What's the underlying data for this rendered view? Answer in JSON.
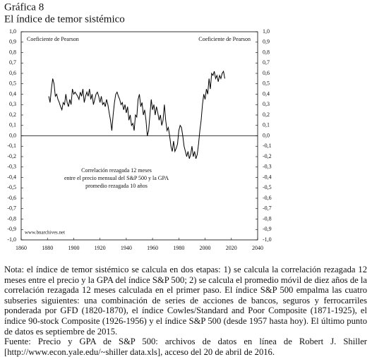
{
  "header": {
    "kicker": "Gráfica 8",
    "title": "El índice de temor sistémico"
  },
  "chart_data": {
    "type": "line",
    "xlim": [
      1860,
      2040
    ],
    "xticks": [
      1860,
      1880,
      1900,
      1920,
      1940,
      1960,
      1980,
      2000,
      2020,
      2040
    ],
    "ylim": [
      -1,
      1
    ],
    "yticks": [
      {
        "value": 1,
        "label": "1,0"
      },
      {
        "value": 0.9,
        "label": "0,9"
      },
      {
        "value": 0.8,
        "label": "0,8"
      },
      {
        "value": 0.7,
        "label": "0,7"
      },
      {
        "value": 0.6,
        "label": "0,6"
      },
      {
        "value": 0.5,
        "label": "0,5"
      },
      {
        "value": 0.4,
        "label": "0,4"
      },
      {
        "value": 0.3,
        "label": "0,3"
      },
      {
        "value": 0.2,
        "label": "0,2"
      },
      {
        "value": 0.1,
        "label": "0,1"
      },
      {
        "value": 0,
        "label": "0,0"
      },
      {
        "value": -0.1,
        "label": "-0,1"
      },
      {
        "value": -0.2,
        "label": "-0,2"
      },
      {
        "value": -0.3,
        "label": "-0,3"
      },
      {
        "value": -0.4,
        "label": "-0,4"
      },
      {
        "value": -0.5,
        "label": "-0,5"
      },
      {
        "value": -0.6,
        "label": "-0,6"
      },
      {
        "value": -0.7,
        "label": "-0,7"
      },
      {
        "value": -0.8,
        "label": "-0,8"
      },
      {
        "value": -0.9,
        "label": "-0,9"
      },
      {
        "value": -1,
        "label": "-1,0"
      }
    ],
    "y2lim": [
      -1,
      1
    ],
    "y2ticks": [
      {
        "value": 1,
        "label": "1,0"
      },
      {
        "value": 0.9,
        "label": "0,9"
      },
      {
        "value": 0.8,
        "label": "0,8"
      },
      {
        "value": 0.7,
        "label": "0,7"
      },
      {
        "value": 0.6,
        "label": "0,6"
      },
      {
        "value": 0.5,
        "label": "0,5"
      },
      {
        "value": 0.4,
        "label": "0,4"
      },
      {
        "value": 0.3,
        "label": "0,3"
      },
      {
        "value": 0.2,
        "label": "0,2"
      },
      {
        "value": 0.1,
        "label": "0,1"
      },
      {
        "value": 0,
        "label": "0,0"
      },
      {
        "value": -0.1,
        "label": "-0,1"
      },
      {
        "value": -0.2,
        "label": "-0,2"
      },
      {
        "value": -0.3,
        "label": "-0,3"
      },
      {
        "value": -0.4,
        "label": "-0,4"
      },
      {
        "value": -0.5,
        "label": "-0,5"
      },
      {
        "value": -0.6,
        "label": "-0,6"
      },
      {
        "value": -0.7,
        "label": "-0,7"
      },
      {
        "value": -0.8,
        "label": "-0,8"
      },
      {
        "value": -0.9,
        "label": "-0,9"
      },
      {
        "value": -1,
        "label": "-1,0"
      }
    ],
    "y_label": "Coeficiente de Pearson",
    "y2_label": "Coeficiente de Pearson",
    "annotation": [
      "Correlación rezagada 12 meses",
      "entre el precio mensual del S&P 500 y la GPA",
      "promedio rezagada 10 años"
    ],
    "source_mark": "www.bnarchives.net",
    "color": "#000000",
    "x": [
      1881,
      1882,
      1883,
      1884,
      1885,
      1886,
      1887,
      1888,
      1889,
      1890,
      1891,
      1892,
      1893,
      1894,
      1895,
      1896,
      1897,
      1898,
      1899,
      1900,
      1901,
      1902,
      1903,
      1904,
      1905,
      1906,
      1907,
      1908,
      1909,
      1910,
      1911,
      1912,
      1913,
      1914,
      1915,
      1916,
      1917,
      1918,
      1919,
      1920,
      1921,
      1922,
      1923,
      1924,
      1925,
      1926,
      1927,
      1928,
      1929,
      1930,
      1931,
      1932,
      1933,
      1934,
      1935,
      1936,
      1937,
      1938,
      1939,
      1940,
      1941,
      1942,
      1943,
      1944,
      1945,
      1946,
      1947,
      1948,
      1949,
      1950,
      1951,
      1952,
      1953,
      1954,
      1955,
      1956,
      1957,
      1958,
      1959,
      1960,
      1961,
      1962,
      1963,
      1964,
      1965,
      1966,
      1967,
      1968,
      1969,
      1970,
      1971,
      1972,
      1973,
      1974,
      1975,
      1976,
      1977,
      1978,
      1979,
      1980,
      1981,
      1982,
      1983,
      1984,
      1985,
      1986,
      1987,
      1988,
      1989,
      1990,
      1991,
      1992,
      1993,
      1994,
      1995,
      1996,
      1997,
      1998,
      1999,
      2000,
      2001,
      2002,
      2003,
      2004,
      2005,
      2006,
      2007,
      2008,
      2009,
      2010,
      2011,
      2012,
      2013,
      2014,
      2015
    ],
    "values": [
      0.38,
      0.32,
      0.45,
      0.55,
      0.5,
      0.38,
      0.4,
      0.35,
      0.32,
      0.28,
      0.25,
      0.32,
      0.3,
      0.4,
      0.32,
      0.28,
      0.35,
      0.3,
      0.45,
      0.4,
      0.42,
      0.4,
      0.38,
      0.35,
      0.42,
      0.38,
      0.45,
      0.32,
      0.38,
      0.42,
      0.38,
      0.45,
      0.35,
      0.4,
      0.3,
      0.35,
      0.4,
      0.42,
      0.38,
      0.32,
      0.38,
      0.3,
      0.32,
      0.28,
      0.35,
      0.3,
      0.22,
      0.15,
      0.05,
      0.2,
      0.32,
      0.4,
      0.42,
      0.38,
      0.35,
      0.3,
      0.32,
      0.25,
      0.3,
      0.22,
      0.28,
      0.15,
      0.2,
      0.1,
      0.12,
      0.05,
      0.2,
      0.18,
      0.35,
      0.4,
      0.28,
      0.32,
      0.2,
      0.25,
      0.15,
      0,
      0.05,
      0.2,
      0.35,
      0.25,
      0.3,
      0.2,
      0.28,
      0.22,
      0.15,
      0.2,
      0.1,
      0.15,
      0.3,
      0.15,
      0.05,
      0.08,
      0,
      -0.1,
      -0.15,
      -0.05,
      -0.15,
      -0.12,
      -0.08,
      0.05,
      0.1,
      0.08,
      0,
      -0.1,
      -0.15,
      -0.2,
      -0.15,
      -0.22,
      -0.18,
      -0.1,
      -0.2,
      -0.15,
      -0.22,
      -0.18,
      -0.08,
      0.05,
      0.15,
      0.3,
      0.4,
      0.35,
      0.45,
      0.4,
      0.55,
      0.45,
      0.6,
      0.58,
      0.62,
      0.55,
      0.58,
      0.52,
      0.58,
      0.55,
      0.6,
      0.62,
      0.55
    ]
  },
  "notes": [
    "Nota: el índice de temor sistémico se calcula en dos etapas: 1) se calcula la correlación rezagada 12 meses entre el precio y la GPA del índice S&P 500; 2) se calcula el promedio móvil de diez años de la correlación rezagada 12 meses calculada en el primer paso. El índice S&P 500 empalma las cuatro subseries siguientes: una combinación de series de acciones de bancos, seguros y ferrocarriles ponderada por GFD (1820-1870), el índice Cowles/Standard and Poor Composite (1871-1925), el índice 90-stock Composite (1926-1956) y el índice S&P 500 (desde 1957 hasta hoy). El último punto de datos es septiembre de 2015.",
    "Fuente: Precio y GPA de S&P 500: archivos de datos en línea de Robert J. Shiller [http://www.econ.yale.edu/~shiller data.xls], acceso del 20 de abril de 2016."
  ]
}
